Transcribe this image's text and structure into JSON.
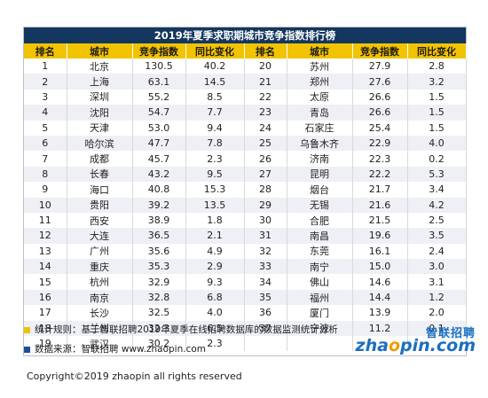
{
  "title": "2019年夏季求职期城市竞争指数排行榜",
  "headers": [
    "排名",
    "城市",
    "竞争指数",
    "同比变化",
    "排名",
    "城市",
    "竞争指数",
    "同比变化"
  ],
  "rows": [
    {
      "left": [
        "1",
        "北京",
        "130.5",
        "40.2"
      ],
      "right": [
        "20",
        "苏州",
        "27.9",
        "2.8"
      ]
    },
    {
      "left": [
        "2",
        "上海",
        "63.1",
        "14.5"
      ],
      "right": [
        "21",
        "郑州",
        "27.6",
        "3.2"
      ]
    },
    {
      "left": [
        "3",
        "深圳",
        "55.2",
        "8.5"
      ],
      "right": [
        "22",
        "太原",
        "26.6",
        "1.5"
      ]
    },
    {
      "left": [
        "4",
        "沈阳",
        "54.7",
        "7.7"
      ],
      "right": [
        "23",
        "青岛",
        "26.6",
        "1.5"
      ]
    },
    {
      "left": [
        "5",
        "天津",
        "53.0",
        "9.4"
      ],
      "right": [
        "24",
        "石家庄",
        "25.4",
        "1.5"
      ]
    },
    {
      "left": [
        "6",
        "哈尔滨",
        "47.7",
        "7.8"
      ],
      "right": [
        "25",
        "乌鲁木齐",
        "22.9",
        "4.0"
      ]
    },
    {
      "left": [
        "7",
        "成都",
        "45.7",
        "2.3"
      ],
      "right": [
        "26",
        "济南",
        "22.3",
        "0.2"
      ]
    },
    {
      "left": [
        "8",
        "长春",
        "43.2",
        "9.5"
      ],
      "right": [
        "27",
        "昆明",
        "22.2",
        "5.3"
      ]
    },
    {
      "left": [
        "9",
        "海口",
        "40.8",
        "15.3"
      ],
      "right": [
        "28",
        "烟台",
        "21.7",
        "3.4"
      ]
    },
    {
      "left": [
        "10",
        "贵阳",
        "39.2",
        "13.5"
      ],
      "right": [
        "29",
        "无锡",
        "21.6",
        "4.2"
      ]
    },
    {
      "left": [
        "11",
        "西安",
        "38.9",
        "1.8"
      ],
      "right": [
        "30",
        "合肥",
        "21.5",
        "2.5"
      ]
    },
    {
      "left": [
        "12",
        "大连",
        "36.5",
        "2.1"
      ],
      "right": [
        "31",
        "南昌",
        "19.6",
        "3.5"
      ]
    },
    {
      "left": [
        "13",
        "广州",
        "35.6",
        "4.9"
      ],
      "right": [
        "32",
        "东莞",
        "16.1",
        "2.4"
      ]
    },
    {
      "left": [
        "14",
        "重庆",
        "35.3",
        "2.9"
      ],
      "right": [
        "33",
        "南宁",
        "15.0",
        "3.0"
      ]
    },
    {
      "left": [
        "15",
        "杭州",
        "32.9",
        "9.3"
      ],
      "right": [
        "34",
        "佛山",
        "14.6",
        "3.1"
      ]
    },
    {
      "left": [
        "16",
        "南京",
        "32.8",
        "6.8"
      ],
      "right": [
        "35",
        "福州",
        "14.4",
        "1.2"
      ]
    },
    {
      "left": [
        "17",
        "长沙",
        "32.5",
        "4.0"
      ],
      "right": [
        "36",
        "厦门",
        "13.9",
        "2.0"
      ]
    },
    {
      "left": [
        "18",
        "兰州",
        "32.3",
        "6.5"
      ],
      "right": [
        "37",
        "宁波",
        "11.2",
        "0.1"
      ]
    },
    {
      "left": [
        "19",
        "武汉",
        "30.2",
        "2.3"
      ],
      "right": [
        "",
        "",
        "",
        ""
      ]
    }
  ],
  "notes": {
    "rule": "统计规则：基于智联招聘2019年夏季在线招聘数据库的数据监测统计分析",
    "source": "数据来源：智联招聘 www.zhaopin.com",
    "rule_color": "#f2c300",
    "source_color": "#1b4fa0"
  },
  "logo": {
    "cn": "智联招聘",
    "en_a": "zha",
    "en_dot": "o",
    "en_b": "pin.com"
  },
  "copyright": "Copyright©2019 zhaopin all rights reserved",
  "colors": {
    "title_bg": "#14375f",
    "header_bg": "#f2c300",
    "stripe": "#eef0f6",
    "brand": "#1b6fc0"
  }
}
